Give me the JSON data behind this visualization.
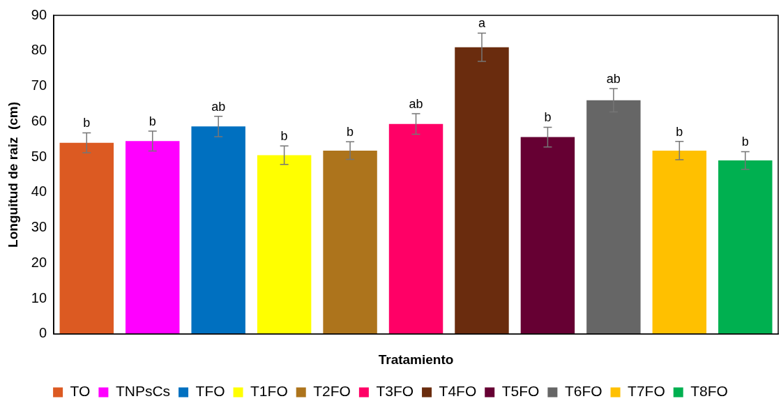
{
  "chart_data": {
    "type": "bar",
    "xlabel": "Tratamiento",
    "ylabel": "Longuitud de raiz  (cm)",
    "categories": [
      null,
      null,
      null,
      null,
      null,
      null,
      null,
      null,
      null,
      null,
      null
    ],
    "series": [
      {
        "name": "TO",
        "color": "#dc5a22",
        "values": [
          54,
          null,
          null,
          null,
          null,
          null,
          null,
          null,
          null,
          null,
          null
        ],
        "errors": [
          2.8,
          null,
          null,
          null,
          null,
          null,
          null,
          null,
          null,
          null,
          null
        ],
        "value_labels": [
          "b",
          null,
          null,
          null,
          null,
          null,
          null,
          null,
          null,
          null,
          null
        ]
      },
      {
        "name": "TNPsCs",
        "color": "#ff00ff",
        "values": [
          null,
          54.5,
          null,
          null,
          null,
          null,
          null,
          null,
          null,
          null,
          null
        ],
        "errors": [
          null,
          2.8,
          null,
          null,
          null,
          null,
          null,
          null,
          null,
          null,
          null
        ],
        "value_labels": [
          null,
          "b",
          null,
          null,
          null,
          null,
          null,
          null,
          null,
          null,
          null
        ]
      },
      {
        "name": "TFO",
        "color": "#0070c0",
        "values": [
          null,
          null,
          58.6,
          null,
          null,
          null,
          null,
          null,
          null,
          null,
          null
        ],
        "errors": [
          null,
          null,
          2.9,
          null,
          null,
          null,
          null,
          null,
          null,
          null,
          null
        ],
        "value_labels": [
          null,
          null,
          "ab",
          null,
          null,
          null,
          null,
          null,
          null,
          null,
          null
        ]
      },
      {
        "name": "T1FO",
        "color": "#ffff00",
        "values": [
          null,
          null,
          null,
          50.5,
          null,
          null,
          null,
          null,
          null,
          null,
          null
        ],
        "errors": [
          null,
          null,
          null,
          2.6,
          null,
          null,
          null,
          null,
          null,
          null,
          null
        ],
        "value_labels": [
          null,
          null,
          null,
          "b",
          null,
          null,
          null,
          null,
          null,
          null,
          null
        ]
      },
      {
        "name": "T2FO",
        "color": "#ad741c",
        "values": [
          null,
          null,
          null,
          null,
          51.8,
          null,
          null,
          null,
          null,
          null,
          null
        ],
        "errors": [
          null,
          null,
          null,
          null,
          2.5,
          null,
          null,
          null,
          null,
          null,
          null
        ],
        "value_labels": [
          null,
          null,
          null,
          null,
          "b",
          null,
          null,
          null,
          null,
          null,
          null
        ]
      },
      {
        "name": "T3FO",
        "color": "#ff0066",
        "values": [
          null,
          null,
          null,
          null,
          null,
          59.3,
          null,
          null,
          null,
          null,
          null
        ],
        "errors": [
          null,
          null,
          null,
          null,
          null,
          2.9,
          null,
          null,
          null,
          null,
          null
        ],
        "value_labels": [
          null,
          null,
          null,
          null,
          null,
          "ab",
          null,
          null,
          null,
          null,
          null
        ]
      },
      {
        "name": "T4FO",
        "color": "#6a2c0e",
        "values": [
          null,
          null,
          null,
          null,
          null,
          null,
          81,
          null,
          null,
          null,
          null
        ],
        "errors": [
          null,
          null,
          null,
          null,
          null,
          null,
          4,
          null,
          null,
          null,
          null
        ],
        "value_labels": [
          null,
          null,
          null,
          null,
          null,
          null,
          "a",
          null,
          null,
          null,
          null
        ]
      },
      {
        "name": "T5FO",
        "color": "#660033",
        "values": [
          null,
          null,
          null,
          null,
          null,
          null,
          null,
          55.6,
          null,
          null,
          null
        ],
        "errors": [
          null,
          null,
          null,
          null,
          null,
          null,
          null,
          2.8,
          null,
          null,
          null
        ],
        "value_labels": [
          null,
          null,
          null,
          null,
          null,
          null,
          null,
          "b",
          null,
          null,
          null
        ]
      },
      {
        "name": "T6FO",
        "color": "#666666",
        "values": [
          null,
          null,
          null,
          null,
          null,
          null,
          null,
          null,
          66,
          null,
          null
        ],
        "errors": [
          null,
          null,
          null,
          null,
          null,
          null,
          null,
          null,
          3.3,
          null,
          null
        ],
        "value_labels": [
          null,
          null,
          null,
          null,
          null,
          null,
          null,
          null,
          "ab",
          null,
          null
        ]
      },
      {
        "name": "T7FO",
        "color": "#ffc000",
        "values": [
          null,
          null,
          null,
          null,
          null,
          null,
          null,
          null,
          null,
          51.8,
          null
        ],
        "errors": [
          null,
          null,
          null,
          null,
          null,
          null,
          null,
          null,
          null,
          2.6,
          null
        ],
        "value_labels": [
          null,
          null,
          null,
          null,
          null,
          null,
          null,
          null,
          null,
          "b",
          null
        ]
      },
      {
        "name": "T8FO",
        "color": "#00b050",
        "values": [
          null,
          null,
          null,
          null,
          null,
          null,
          null,
          null,
          null,
          null,
          49
        ],
        "errors": [
          null,
          null,
          null,
          null,
          null,
          null,
          null,
          null,
          null,
          null,
          2.5
        ],
        "value_labels": [
          null,
          null,
          null,
          null,
          null,
          null,
          null,
          null,
          null,
          null,
          "b"
        ]
      }
    ],
    "ylim": [
      0,
      90
    ],
    "yticks": [
      0,
      10,
      20,
      30,
      40,
      50,
      60,
      70,
      80,
      90
    ],
    "grid": false,
    "legend": "bottom"
  }
}
